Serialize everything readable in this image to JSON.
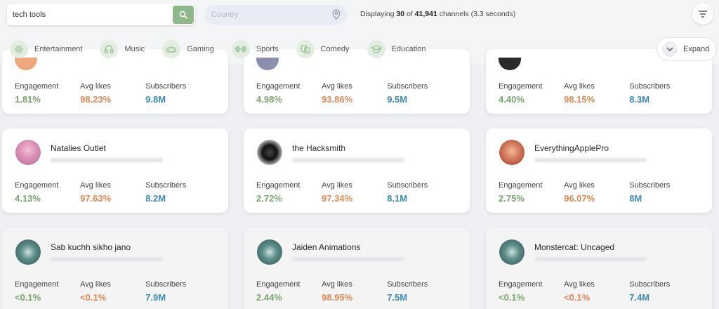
{
  "search": {
    "value": "tech tools",
    "country_placeholder": "Country"
  },
  "status": {
    "prefix": "Displaying",
    "shown": "30",
    "of": "of",
    "total": "41,941",
    "suffix": "channels (3.3 seconds)"
  },
  "categories": [
    {
      "label": "Entertainment",
      "icon": "entertainment-icon"
    },
    {
      "label": "Music",
      "icon": "music-icon"
    },
    {
      "label": "Gaming",
      "icon": "gaming-icon"
    },
    {
      "label": "Sports",
      "icon": "sports-icon"
    },
    {
      "label": "Comedy",
      "icon": "comedy-icon"
    },
    {
      "label": "Education",
      "icon": "education-icon"
    }
  ],
  "expand_label": "Expand",
  "metric_labels": {
    "engagement": "Engagement",
    "likes": "Avg likes",
    "subs": "Subscribers"
  },
  "colors": {
    "engagement": "#7aa66d",
    "likes": "#e38a55",
    "subscribers": "#3b8bb8",
    "accent": "#8fb98c"
  },
  "cards": [
    {
      "name": "",
      "engagement": "1.81%",
      "likes": "98.23%",
      "subs": "9.8M"
    },
    {
      "name": "",
      "engagement": "4.98%",
      "likes": "93.86%",
      "subs": "9.5M"
    },
    {
      "name": "",
      "engagement": "4.40%",
      "likes": "98.15%",
      "subs": "8.3M"
    },
    {
      "name": "Natalies Outlet",
      "engagement": "4.13%",
      "likes": "97.63%",
      "subs": "8.2M"
    },
    {
      "name": "the Hacksmith",
      "engagement": "2.72%",
      "likes": "97.34%",
      "subs": "8.1M"
    },
    {
      "name": "EverythingApplePro",
      "engagement": "2.75%",
      "likes": "96.07%",
      "subs": "8M"
    },
    {
      "name": "Sab kuchh sikho jano",
      "engagement": "<0.1%",
      "likes": "<0.1%",
      "subs": "7.9M"
    },
    {
      "name": "Jaiden Animations",
      "engagement": "2.44%",
      "likes": "98.95%",
      "subs": "7.5M"
    },
    {
      "name": "Monstercat: Uncaged",
      "engagement": "<0.1%",
      "likes": "<0.1%",
      "subs": "7.4M"
    }
  ]
}
